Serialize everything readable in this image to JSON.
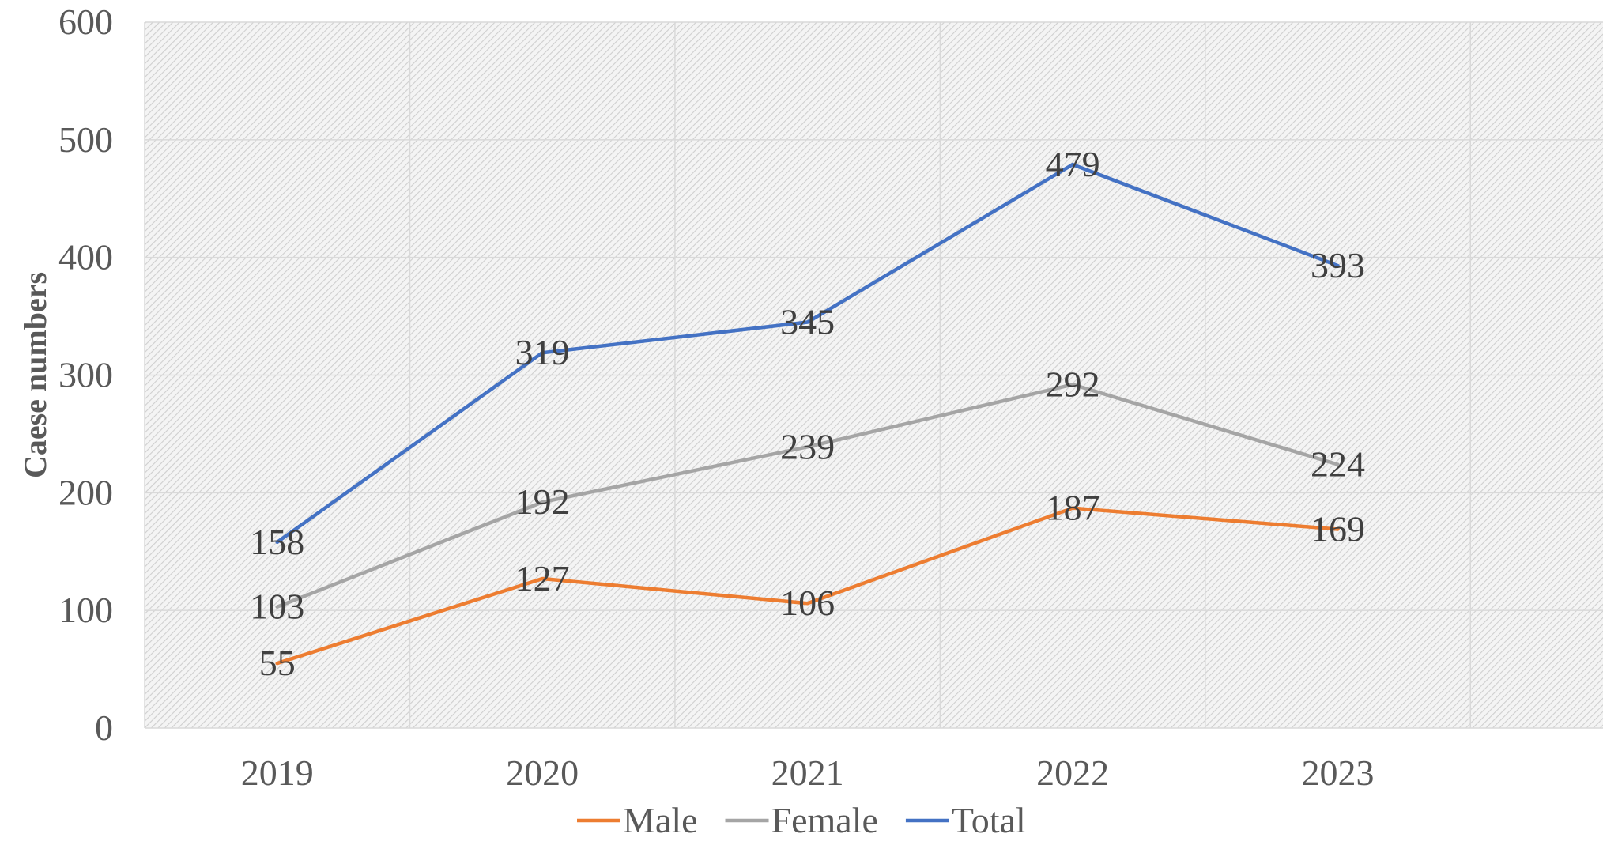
{
  "chart_data": {
    "type": "line",
    "title": "",
    "xlabel": "",
    "ylabel": "Caese numbers",
    "categories": [
      "2019",
      "2020",
      "2021",
      "2022",
      "2023"
    ],
    "ylim": [
      0,
      600
    ],
    "yticks": [
      0,
      100,
      200,
      300,
      400,
      500,
      600
    ],
    "grid": true,
    "legend_position": "bottom",
    "series": [
      {
        "name": "Male",
        "color": "#ED7D31",
        "values": [
          55,
          127,
          106,
          187,
          169
        ]
      },
      {
        "name": "Female",
        "color": "#A5A5A5",
        "values": [
          103,
          192,
          239,
          292,
          224
        ]
      },
      {
        "name": "Total",
        "color": "#4472C4",
        "values": [
          158,
          319,
          345,
          479,
          393
        ]
      }
    ]
  }
}
